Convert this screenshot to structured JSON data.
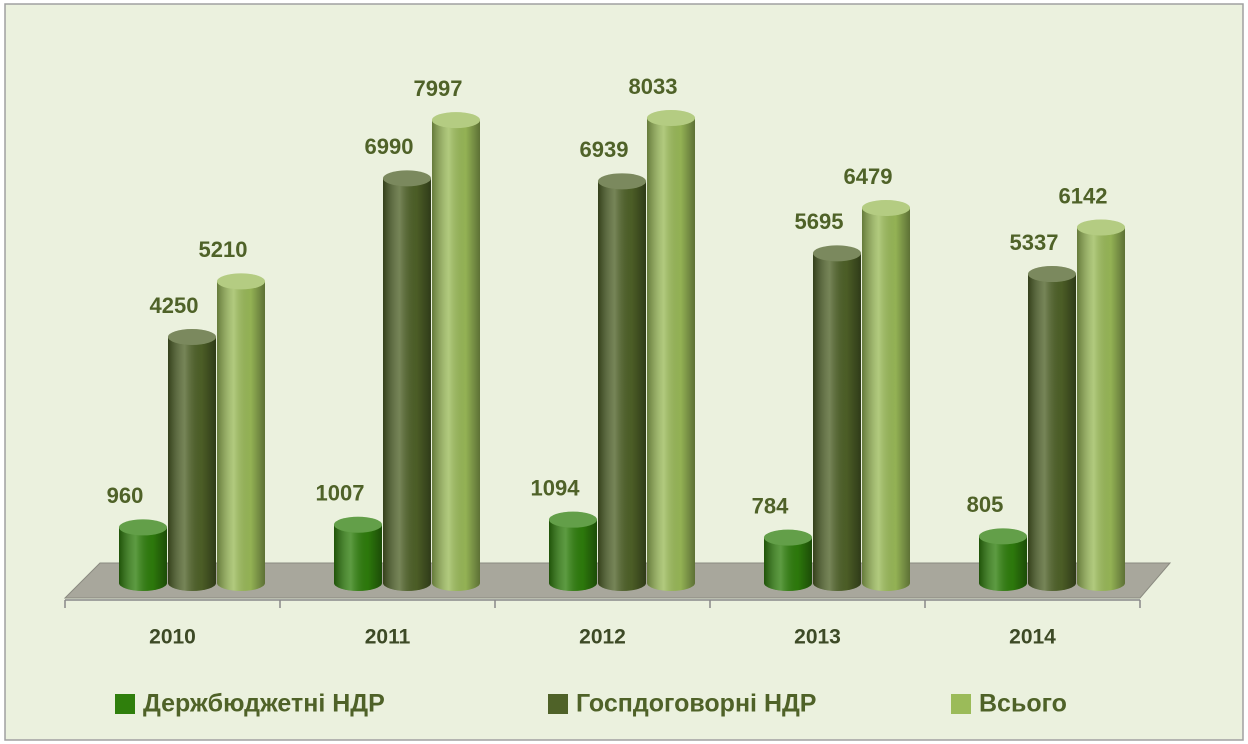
{
  "chart_data": {
    "type": "bar3d",
    "categories": [
      "2010",
      "2011",
      "2012",
      "2013",
      "2014"
    ],
    "series": [
      {
        "name": "Держбюджетні НДР",
        "color": "#2f7f0c",
        "values": [
          960,
          1007,
          1094,
          784,
          805
        ]
      },
      {
        "name": "Госпдоговорні НДР",
        "color": "#4f6228",
        "values": [
          4250,
          6990,
          6939,
          5695,
          5337
        ]
      },
      {
        "name": "Всього",
        "color": "#9bbb59",
        "values": [
          5210,
          7997,
          8033,
          6479,
          6142
        ]
      }
    ],
    "legend": "bottom"
  }
}
